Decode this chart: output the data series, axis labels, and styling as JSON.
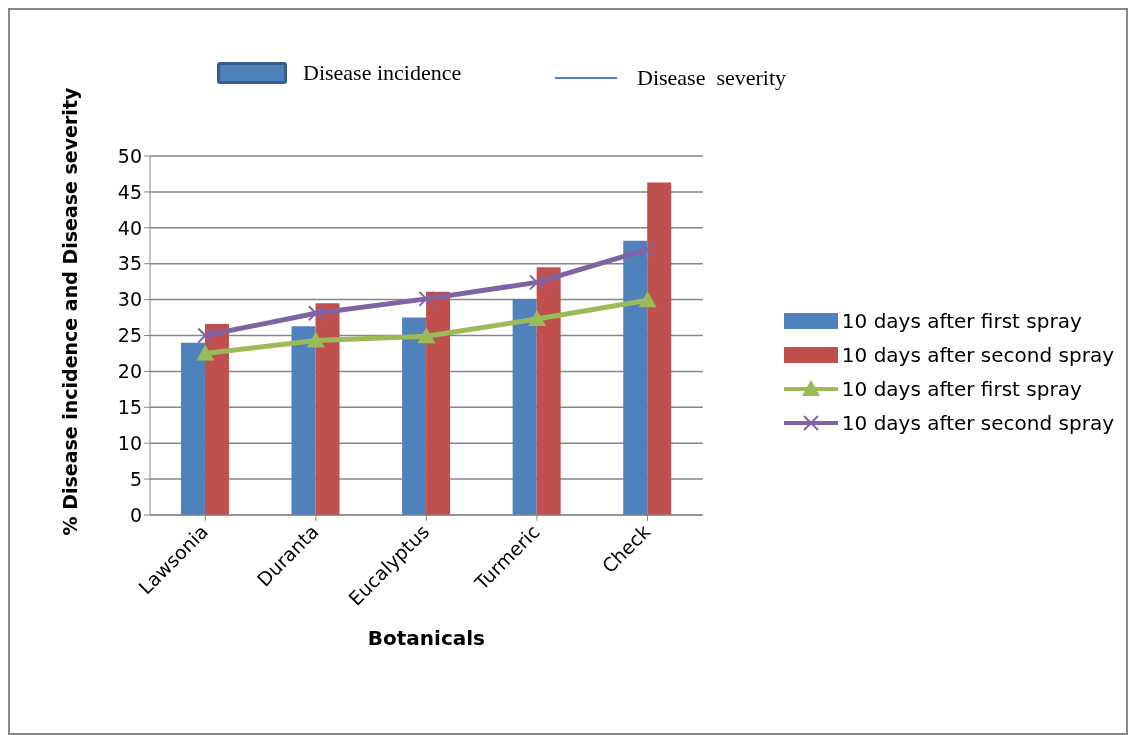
{
  "chart_data": {
    "type": "bar",
    "xlabel": "Botanicals",
    "ylabel": "% Disease incidence and Disease severity",
    "annotations": [
      "Disease incidence",
      "Disease  severity"
    ],
    "categories": [
      "Lawsonia",
      "Duranta",
      "Eucalyptus",
      "Turmeric",
      "Check"
    ],
    "series": [
      {
        "name": "10 days after first spray",
        "color": "#4f81bd",
        "values": [
          24.0,
          26.3,
          27.5,
          30.1,
          38.2
        ]
      },
      {
        "name": "10 days after second spray",
        "color": "#c0504d",
        "values": [
          26.6,
          29.5,
          31.1,
          34.5,
          46.3
        ]
      },
      {
        "name": "10 days after first spray",
        "type": "line",
        "marker": "triangle",
        "color": "#9bbb59",
        "values": [
          22.5,
          24.3,
          24.9,
          27.3,
          29.9
        ]
      },
      {
        "name": "10 days after second spray",
        "type": "line",
        "marker": "cross",
        "color": "#8064a2",
        "values": [
          25.0,
          28.1,
          30.1,
          32.4,
          37.0
        ]
      }
    ],
    "ylim": [
      0,
      50
    ],
    "yticks": [
      0,
      5,
      10,
      15,
      20,
      25,
      30,
      35,
      40,
      45,
      50
    ],
    "grid": "y",
    "legend": "right"
  }
}
